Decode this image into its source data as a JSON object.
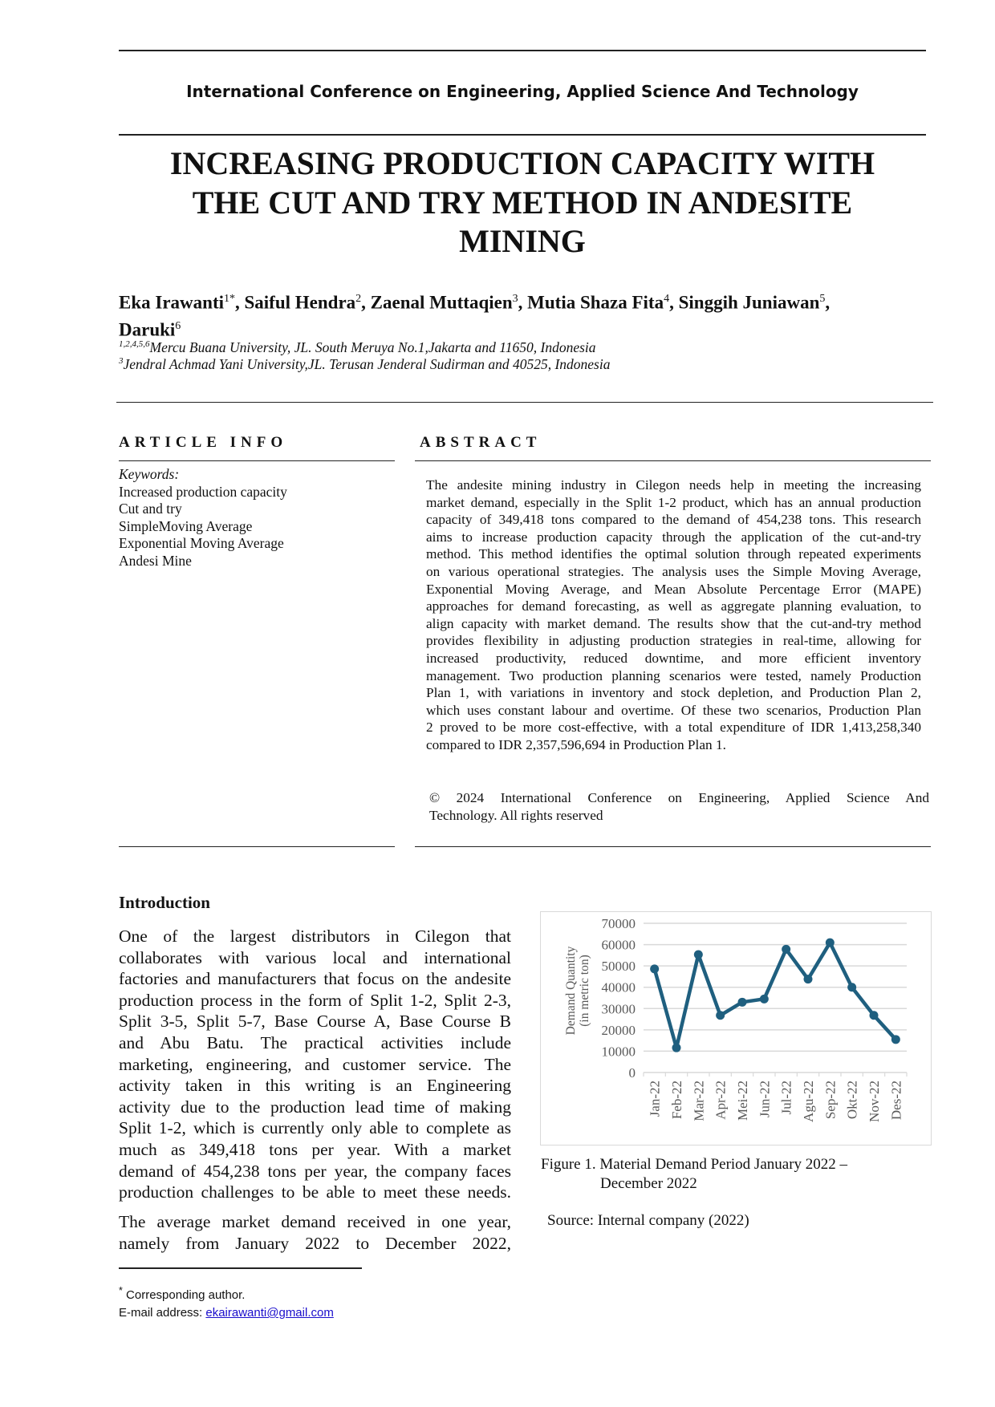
{
  "header": {
    "conference": "International Conference on Engineering, Applied Science And Technology"
  },
  "title_lines": [
    "INCREASING PRODUCTION CAPACITY WITH",
    "THE CUT AND TRY METHOD IN ANDESITE",
    "MINING"
  ],
  "authors": [
    {
      "name": "Eka Irawanti",
      "sup": "1*",
      "sep": ", "
    },
    {
      "name": "Saiful Hendra",
      "sup": "2",
      "sep": ", "
    },
    {
      "name": "Zaenal Muttaqien",
      "sup": "3",
      "sep": ", "
    },
    {
      "name": "Mutia Shaza Fita",
      "sup": "4",
      "sep": ", "
    },
    {
      "name": "Singgih Juniawan",
      "sup": "5",
      "sep": ", "
    },
    {
      "name": "Daruki",
      "sup": "6",
      "sep": ""
    }
  ],
  "affiliations": [
    {
      "sup": "1,2,4,5,6",
      "text": "Mercu Buana University, JL. South Meruya No.1,Jakarta and 11650, Indonesia"
    },
    {
      "sup": "3",
      "text": "Jendral Achmad Yani University,JL. Terusan Jenderal Sudirman and 40525, Indonesia"
    }
  ],
  "article_info": {
    "heading": "ARTICLE INFO",
    "keywords_label": "Keywords:",
    "keywords": [
      "Increased production capacity",
      "Cut and try",
      "SimpleMoving Average",
      "Exponential Moving Average",
      "Andesi Mine"
    ]
  },
  "abstract": {
    "heading": "ABSTRACT",
    "lines": [
      "The andesite mining industry in Cilegon needs help in meeting the increasing",
      "market demand, especially in the Split 1-2 product, which has an annual production",
      "capacity of 349,418 tons compared to the demand of 454,238 tons. This research",
      "aims to increase production capacity through the application of the cut-and-try",
      "method. This method identifies the optimal solution through repeated experiments",
      "on various operational strategies. The analysis uses the Simple Moving Average,",
      "Exponential Moving Average, and Mean Absolute Percentage Error (MAPE)",
      "approaches for demand forecasting, as well as aggregate planning evaluation, to",
      "align capacity with market demand. The results show that the cut-and-try method",
      "provides flexibility in adjusting production strategies in real-time, allowing for",
      "increased productivity, reduced downtime, and more efficient inventory",
      "management. Two production planning scenarios were tested, namely Production",
      "Plan 1, with variations in inventory and stock depletion, and Production Plan 2,",
      "which uses constant labour and overtime. Of these two scenarios, Production Plan",
      "2 proved to be more cost-effective, with a total expenditure of IDR 1,413,258,340",
      "compared to IDR 2,357,596,694 in Production Plan 1."
    ],
    "copyright_lines": [
      "© 2024 International Conference on Engineering, Applied Science And",
      "Technology. All rights reserved"
    ]
  },
  "introduction": {
    "heading": "Introduction",
    "para1": [
      "One of the largest distributors in Cilegon that",
      "collaborates with various local and international",
      "factories and manufacturers that focus on the andesite",
      "production process in the form of Split 1-2, Split 2-3,",
      "Split 3-5, Split 5-7, Base Course A, Base Course B",
      "and Abu Batu. The practical activities include",
      "marketing, engineering, and customer service. The",
      "activity taken in this writing is an Engineering",
      "activity due to the production lead time of making",
      "Split 1-2, which is currently only able to complete as",
      "much as 349,418 tons per year. With a market",
      "demand of 454,238 tons per year, the company faces",
      "production challenges to be able to meet these needs."
    ],
    "para2": [
      "The average market demand received in one year,",
      "namely from January 2022 to December 2022,"
    ]
  },
  "figure": {
    "caption_line1": "Figure 1. Material Demand Period January 2022 –",
    "caption_line2": "December 2022",
    "source": "Source: Internal company (2022)"
  },
  "chart_data": {
    "type": "line",
    "categories": [
      "Jan-22",
      "Feb-22",
      "Mar-22",
      "Apr-22",
      "Mei-22",
      "Jun-22",
      "Jul-22",
      "Agu-22",
      "Sep-22",
      "Okt-22",
      "Nov-22",
      "Des-22"
    ],
    "values": [
      48600,
      11600,
      55300,
      26800,
      33000,
      34500,
      57800,
      43800,
      60900,
      40000,
      26800,
      15500
    ],
    "ylabel_lines": [
      "Demand Quantity",
      "(in metric ton)"
    ],
    "yticks": [
      0,
      10000,
      20000,
      30000,
      40000,
      50000,
      60000,
      70000
    ],
    "ylim": [
      0,
      70000
    ],
    "grid": true,
    "line_color": "#1f5f7f",
    "grid_color": "#d9d9d9"
  },
  "footnote": {
    "mark": "*",
    "corresponding": "Corresponding author.",
    "email_label": "E-mail address: ",
    "email": "ekairawanti@gmail.com"
  }
}
